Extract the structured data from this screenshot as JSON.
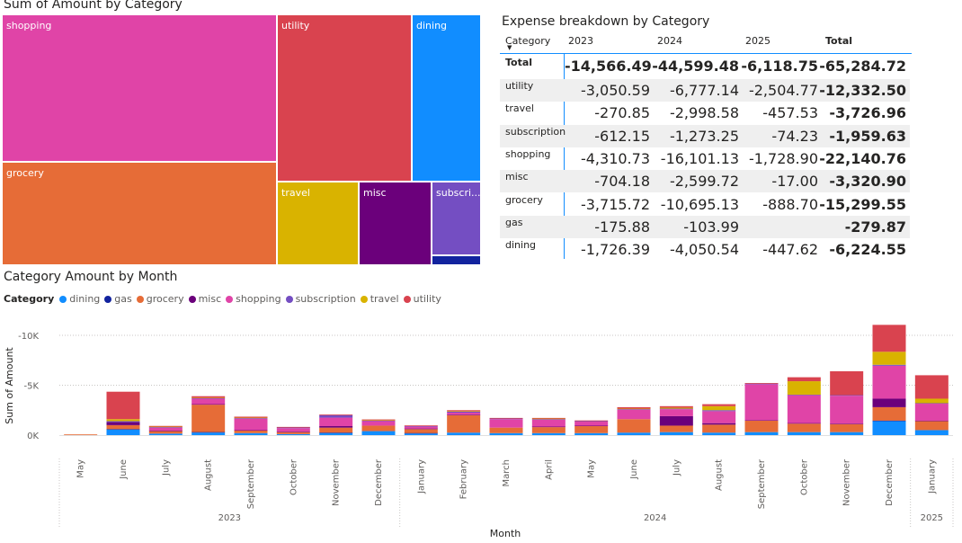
{
  "treemap": {
    "title": "Sum of Amount by Category",
    "tiles": [
      {
        "label": "shopping",
        "color": "#E044A7"
      },
      {
        "label": "grocery",
        "color": "#E66C37"
      },
      {
        "label": "utility",
        "color": "#D9434F"
      },
      {
        "label": "dining",
        "color": "#118DFF"
      },
      {
        "label": "travel",
        "color": "#D9B300"
      },
      {
        "label": "misc",
        "color": "#6B007B"
      },
      {
        "label": "subscri...",
        "color": "#744EC2"
      },
      {
        "label": "",
        "color": "#12239E"
      }
    ]
  },
  "matrix": {
    "title": "Expense breakdown by Category",
    "headers": [
      "Category",
      "2023",
      "2024",
      "2025",
      "Total"
    ],
    "total_row": {
      "label": "Total",
      "values": [
        "-14,566.49",
        "-44,599.48",
        "-6,118.75",
        "-65,284.72"
      ]
    },
    "rows": [
      {
        "label": "utility",
        "values": [
          "-3,050.59",
          "-6,777.14",
          "-2,504.77",
          "-12,332.50"
        ]
      },
      {
        "label": "travel",
        "values": [
          "-270.85",
          "-2,998.58",
          "-457.53",
          "-3,726.96"
        ]
      },
      {
        "label": "subscription",
        "values": [
          "-612.15",
          "-1,273.25",
          "-74.23",
          "-1,959.63"
        ]
      },
      {
        "label": "shopping",
        "values": [
          "-4,310.73",
          "-16,101.13",
          "-1,728.90",
          "-22,140.76"
        ]
      },
      {
        "label": "misc",
        "values": [
          "-704.18",
          "-2,599.72",
          "-17.00",
          "-3,320.90"
        ]
      },
      {
        "label": "grocery",
        "values": [
          "-3,715.72",
          "-10,695.13",
          "-888.70",
          "-15,299.55"
        ]
      },
      {
        "label": "gas",
        "values": [
          "-175.88",
          "-103.99",
          "",
          "-279.87"
        ]
      },
      {
        "label": "dining",
        "values": [
          "-1,726.39",
          "-4,050.54",
          "-447.62",
          "-6,224.55"
        ]
      }
    ]
  },
  "chart_data": {
    "type": "bar",
    "stacked": true,
    "title": "Category Amount by Month",
    "legend_title": "Category",
    "legend_position": "top-left",
    "xlabel": "Month",
    "ylabel": "Sum of Amount",
    "yticks": [
      "-10K",
      "-5K",
      "0K"
    ],
    "ytick_values": [
      -10000,
      -5000,
      0
    ],
    "ylim": [
      0,
      -11500
    ],
    "categories": [
      "May",
      "June",
      "July",
      "August",
      "September",
      "October",
      "November",
      "December",
      "January",
      "February",
      "March",
      "April",
      "May",
      "June",
      "July",
      "August",
      "September",
      "October",
      "November",
      "December",
      "January"
    ],
    "year_groups": [
      {
        "label": "2023",
        "span": 8
      },
      {
        "label": "2024",
        "span": 12
      },
      {
        "label": "2025",
        "span": 1
      }
    ],
    "series": [
      {
        "name": "dining",
        "color": "#118DFF",
        "values": [
          0,
          -550,
          -150,
          -250,
          -200,
          -100,
          -200,
          -400,
          -150,
          -250,
          -200,
          -200,
          -200,
          -250,
          -300,
          -250,
          -300,
          -300,
          -300,
          -1400,
          -500
        ]
      },
      {
        "name": "gas",
        "color": "#12239E",
        "values": [
          0,
          -50,
          0,
          -50,
          0,
          0,
          -50,
          0,
          -50,
          0,
          0,
          0,
          0,
          0,
          0,
          0,
          0,
          0,
          0,
          -50,
          0
        ]
      },
      {
        "name": "grocery",
        "color": "#E66C37",
        "values": [
          -50,
          -400,
          -250,
          -2750,
          -250,
          -200,
          -500,
          -550,
          -400,
          -1750,
          -550,
          -600,
          -700,
          -1350,
          -650,
          -800,
          -1150,
          -850,
          -800,
          -1350,
          -900
        ]
      },
      {
        "name": "misc",
        "color": "#6B007B",
        "values": [
          0,
          -300,
          -50,
          -50,
          -50,
          -50,
          -150,
          0,
          -50,
          -50,
          0,
          -50,
          -50,
          0,
          -950,
          -150,
          -50,
          -50,
          -50,
          -850,
          -50
        ]
      },
      {
        "name": "shopping",
        "color": "#E044A7",
        "values": [
          0,
          0,
          -300,
          -550,
          -1150,
          -350,
          -850,
          -450,
          -200,
          -200,
          -850,
          -700,
          -400,
          -950,
          -700,
          -1200,
          -3600,
          -2800,
          -2800,
          -3300,
          -1700
        ]
      },
      {
        "name": "subscription",
        "color": "#744EC2",
        "values": [
          0,
          -100,
          -50,
          -50,
          -50,
          -50,
          -250,
          -50,
          -50,
          -100,
          -50,
          -50,
          -50,
          -50,
          -50,
          -100,
          -50,
          -50,
          -50,
          -100,
          -50
        ]
      },
      {
        "name": "travel",
        "color": "#D9B300",
        "values": [
          0,
          -200,
          -50,
          -50,
          -50,
          0,
          0,
          -50,
          0,
          -50,
          0,
          -50,
          0,
          -50,
          -100,
          -400,
          0,
          -1350,
          0,
          -1300,
          -450
        ]
      },
      {
        "name": "utility",
        "color": "#D9434F",
        "values": [
          0,
          -2750,
          -50,
          -150,
          -100,
          -50,
          -50,
          -50,
          -50,
          -100,
          -50,
          -50,
          -50,
          -150,
          -150,
          -200,
          -50,
          -400,
          -2400,
          -2700,
          -2350
        ]
      }
    ]
  }
}
